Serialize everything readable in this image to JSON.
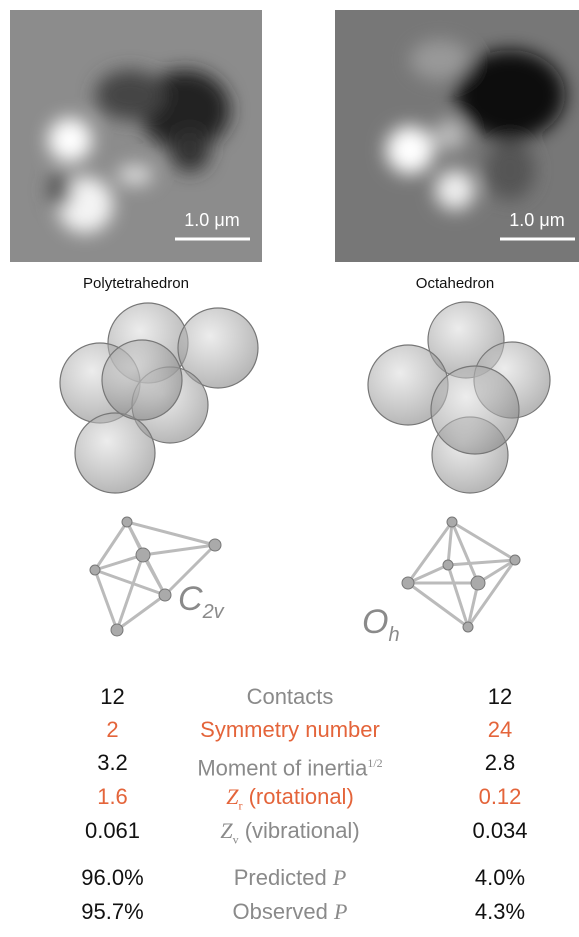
{
  "panels": [
    {
      "scale_bar": "1.0 μm",
      "name": "Polytetrahedron",
      "symbol": "C",
      "symbol_sub": "2v"
    },
    {
      "scale_bar": "1.0 μm",
      "name": "Octahedron",
      "symbol": "O",
      "symbol_sub": "h"
    }
  ],
  "table": {
    "rows": [
      {
        "left": "12",
        "label": "Contacts",
        "right": "12"
      },
      {
        "left": "2",
        "label": "Symmetry number",
        "right": "24"
      },
      {
        "left": "3.2",
        "label": "Moment of inertia",
        "label_sup": "1/2",
        "right": "2.8"
      },
      {
        "left": "1.6",
        "label_symbol": "Z",
        "label_sub": "r",
        "label": "(rotational)",
        "right": "0.12"
      },
      {
        "left": "0.061",
        "label_symbol": "Z",
        "label_sub": "v",
        "label": "(vibrational)",
        "right": "0.034"
      },
      {
        "left": "96.0%",
        "label": "Predicted",
        "label_symbol": "P",
        "right": "4.0%"
      },
      {
        "left": "95.7%",
        "label": "Observed",
        "label_symbol": "P",
        "right": "4.3%"
      }
    ]
  }
}
